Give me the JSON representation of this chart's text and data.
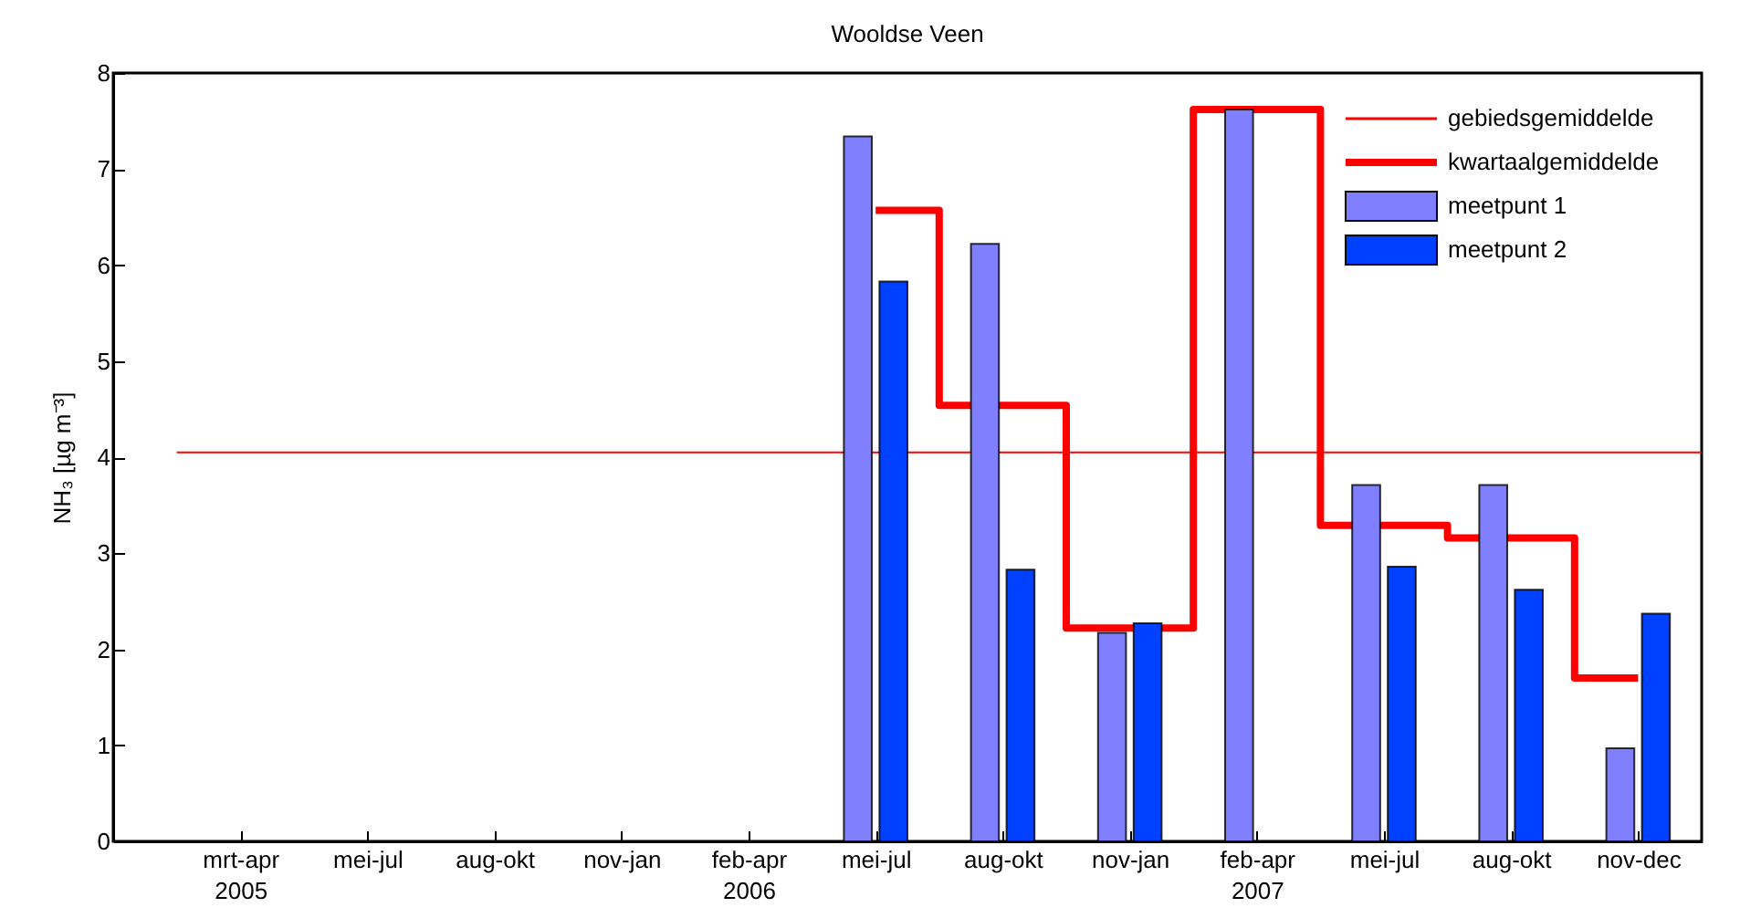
{
  "chart_data": {
    "type": "bar",
    "title": "Wooldse Veen",
    "ylabel": "NH₃ [µg m⁻³]",
    "categories": [
      "mrt-apr\n2005",
      "mei-jul",
      "aug-okt",
      "nov-jan",
      "feb-apr\n2006",
      "mei-jul",
      "aug-okt",
      "nov-jan",
      "feb-apr\n2007",
      "mei-jul",
      "aug-okt",
      "nov-dec"
    ],
    "series": [
      {
        "name": "kwartaalgemiddelde",
        "type": "step",
        "color": "#ff0000",
        "values": [
          null,
          null,
          null,
          null,
          null,
          6.57,
          4.54,
          2.22,
          7.62,
          3.29,
          3.16,
          1.7
        ]
      },
      {
        "name": "meetpunt 1",
        "color": "#8080ff",
        "values": [
          null,
          null,
          null,
          null,
          null,
          7.34,
          6.22,
          2.17,
          7.62,
          3.71,
          3.71,
          0.97
        ]
      },
      {
        "name": "meetpunt 2",
        "color": "#0040ff",
        "values": [
          null,
          null,
          null,
          null,
          null,
          5.83,
          2.83,
          2.27,
          null,
          2.86,
          2.62,
          2.37
        ]
      }
    ],
    "ref_lines": [
      {
        "axis": "y",
        "value": 4.05,
        "label": "gebiedsgemiddelde",
        "color": "#ff0000"
      }
    ],
    "ylim": [
      0,
      8
    ],
    "yticks": [
      0,
      1,
      2,
      3,
      4,
      5,
      6,
      7,
      8
    ],
    "grid": false,
    "legend": "top right"
  }
}
